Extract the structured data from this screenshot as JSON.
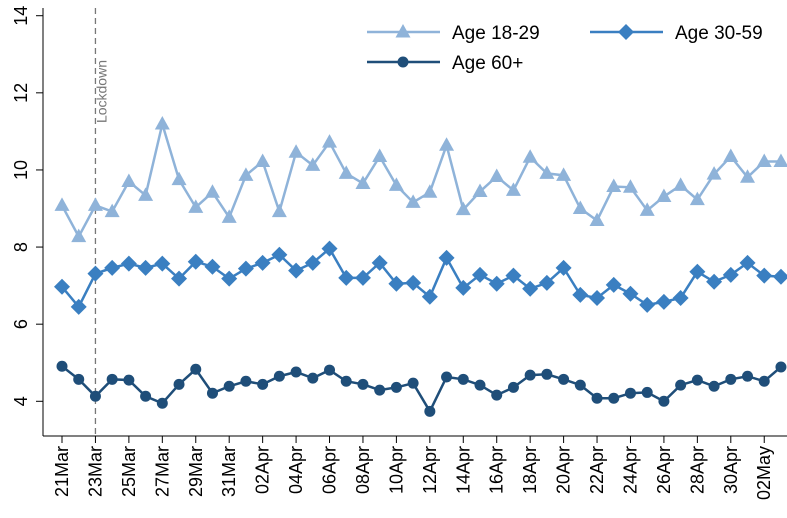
{
  "chart_data": {
    "type": "line",
    "categories": [
      "21Mar",
      null,
      "23Mar",
      null,
      "25Mar",
      null,
      "27Mar",
      null,
      "29Mar",
      null,
      "31Mar",
      null,
      "02Apr",
      null,
      "04Apr",
      null,
      "06Apr",
      null,
      "08Apr",
      null,
      "10Apr",
      null,
      "12Apr",
      null,
      "14Apr",
      null,
      "16Apr",
      null,
      "18Apr",
      null,
      "20Apr",
      null,
      "22Apr",
      null,
      "24Apr",
      null,
      "26Apr",
      null,
      "28Apr",
      null,
      "30Apr",
      null,
      "02May",
      null
    ],
    "series": [
      {
        "name": "Age 18-29",
        "color": "#8fb3d9",
        "marker": "triangle",
        "values": [
          9.08,
          8.27,
          9.08,
          8.92,
          9.7,
          9.34,
          11.19,
          9.75,
          9.03,
          9.42,
          8.77,
          9.86,
          10.22,
          8.92,
          10.46,
          10.12,
          10.72,
          9.91,
          9.65,
          10.35,
          9.6,
          9.16,
          9.42,
          10.64,
          8.97,
          9.44,
          9.83,
          9.47,
          10.33,
          9.91,
          9.86,
          9.0,
          8.69,
          9.57,
          9.55,
          8.95,
          9.31,
          9.6,
          9.23,
          9.89,
          10.35,
          9.81,
          10.22,
          10.22
        ]
      },
      {
        "name": "Age 30-59",
        "color": "#3a7fc1",
        "marker": "diamond",
        "values": [
          6.97,
          6.45,
          7.31,
          7.46,
          7.57,
          7.46,
          7.57,
          7.18,
          7.62,
          7.49,
          7.18,
          7.44,
          7.59,
          7.8,
          7.39,
          7.59,
          7.96,
          7.2,
          7.2,
          7.59,
          7.05,
          7.07,
          6.71,
          7.72,
          6.94,
          7.28,
          7.05,
          7.26,
          6.92,
          7.07,
          7.46,
          6.76,
          6.68,
          7.02,
          6.79,
          6.5,
          6.58,
          6.68,
          7.36,
          7.1,
          7.28,
          7.59,
          7.26,
          7.23
        ]
      },
      {
        "name": "Age 60+",
        "color": "#1f4e79",
        "marker": "circle",
        "values": [
          4.91,
          4.57,
          4.13,
          4.57,
          4.55,
          4.13,
          3.95,
          4.44,
          4.83,
          4.21,
          4.39,
          4.52,
          4.44,
          4.65,
          4.76,
          4.6,
          4.81,
          4.52,
          4.44,
          4.29,
          4.36,
          4.47,
          3.74,
          4.63,
          4.57,
          4.42,
          4.16,
          4.36,
          4.68,
          4.7,
          4.57,
          4.42,
          4.08,
          4.08,
          4.21,
          4.23,
          4.0,
          4.42,
          4.55,
          4.39,
          4.57,
          4.65,
          4.52,
          4.89
        ]
      }
    ],
    "ylim": [
      3.1,
      14.2
    ],
    "yticks": [
      4,
      6,
      8,
      10,
      12,
      14
    ],
    "annotations": [
      {
        "text": "Lockdown",
        "x": "23Mar"
      }
    ],
    "legend": "top-right",
    "grid": false
  }
}
